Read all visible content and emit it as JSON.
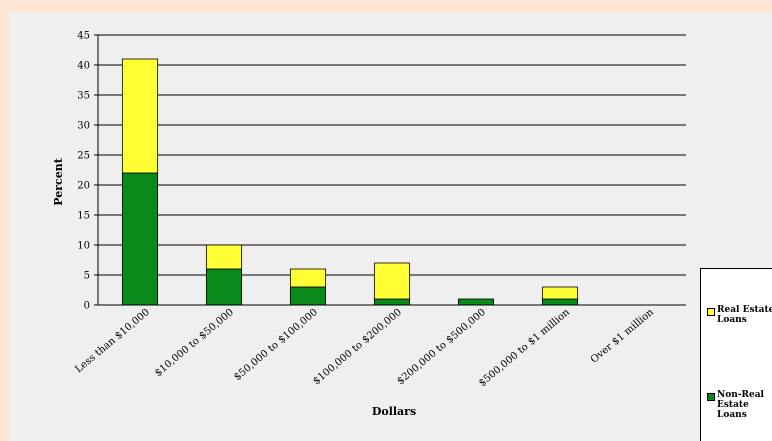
{
  "chart_data": {
    "type": "bar",
    "stacked": true,
    "title": "",
    "xlabel": "Dollars",
    "ylabel": "Percent",
    "ylim": [
      0,
      45
    ],
    "yticks": [
      0,
      5,
      10,
      15,
      20,
      25,
      30,
      35,
      40,
      45
    ],
    "grid": true,
    "legend_position": "right",
    "categories": [
      "Less than $10,000",
      "$10,000 to $50,000",
      "$50,000 to $100,000",
      "$100,000 to $200,000",
      "$200,000 to $500,000",
      "$500,000 to $1 million",
      "Over $1 million"
    ],
    "series": [
      {
        "name": "Non-Real Estate Loans",
        "color": "#0a8a1a",
        "values": [
          22,
          6,
          3,
          1,
          1,
          1,
          0
        ]
      },
      {
        "name": "Real Estate Loans",
        "color": "#ffff33",
        "values": [
          19,
          4,
          3,
          6,
          0,
          2,
          0
        ]
      }
    ]
  }
}
